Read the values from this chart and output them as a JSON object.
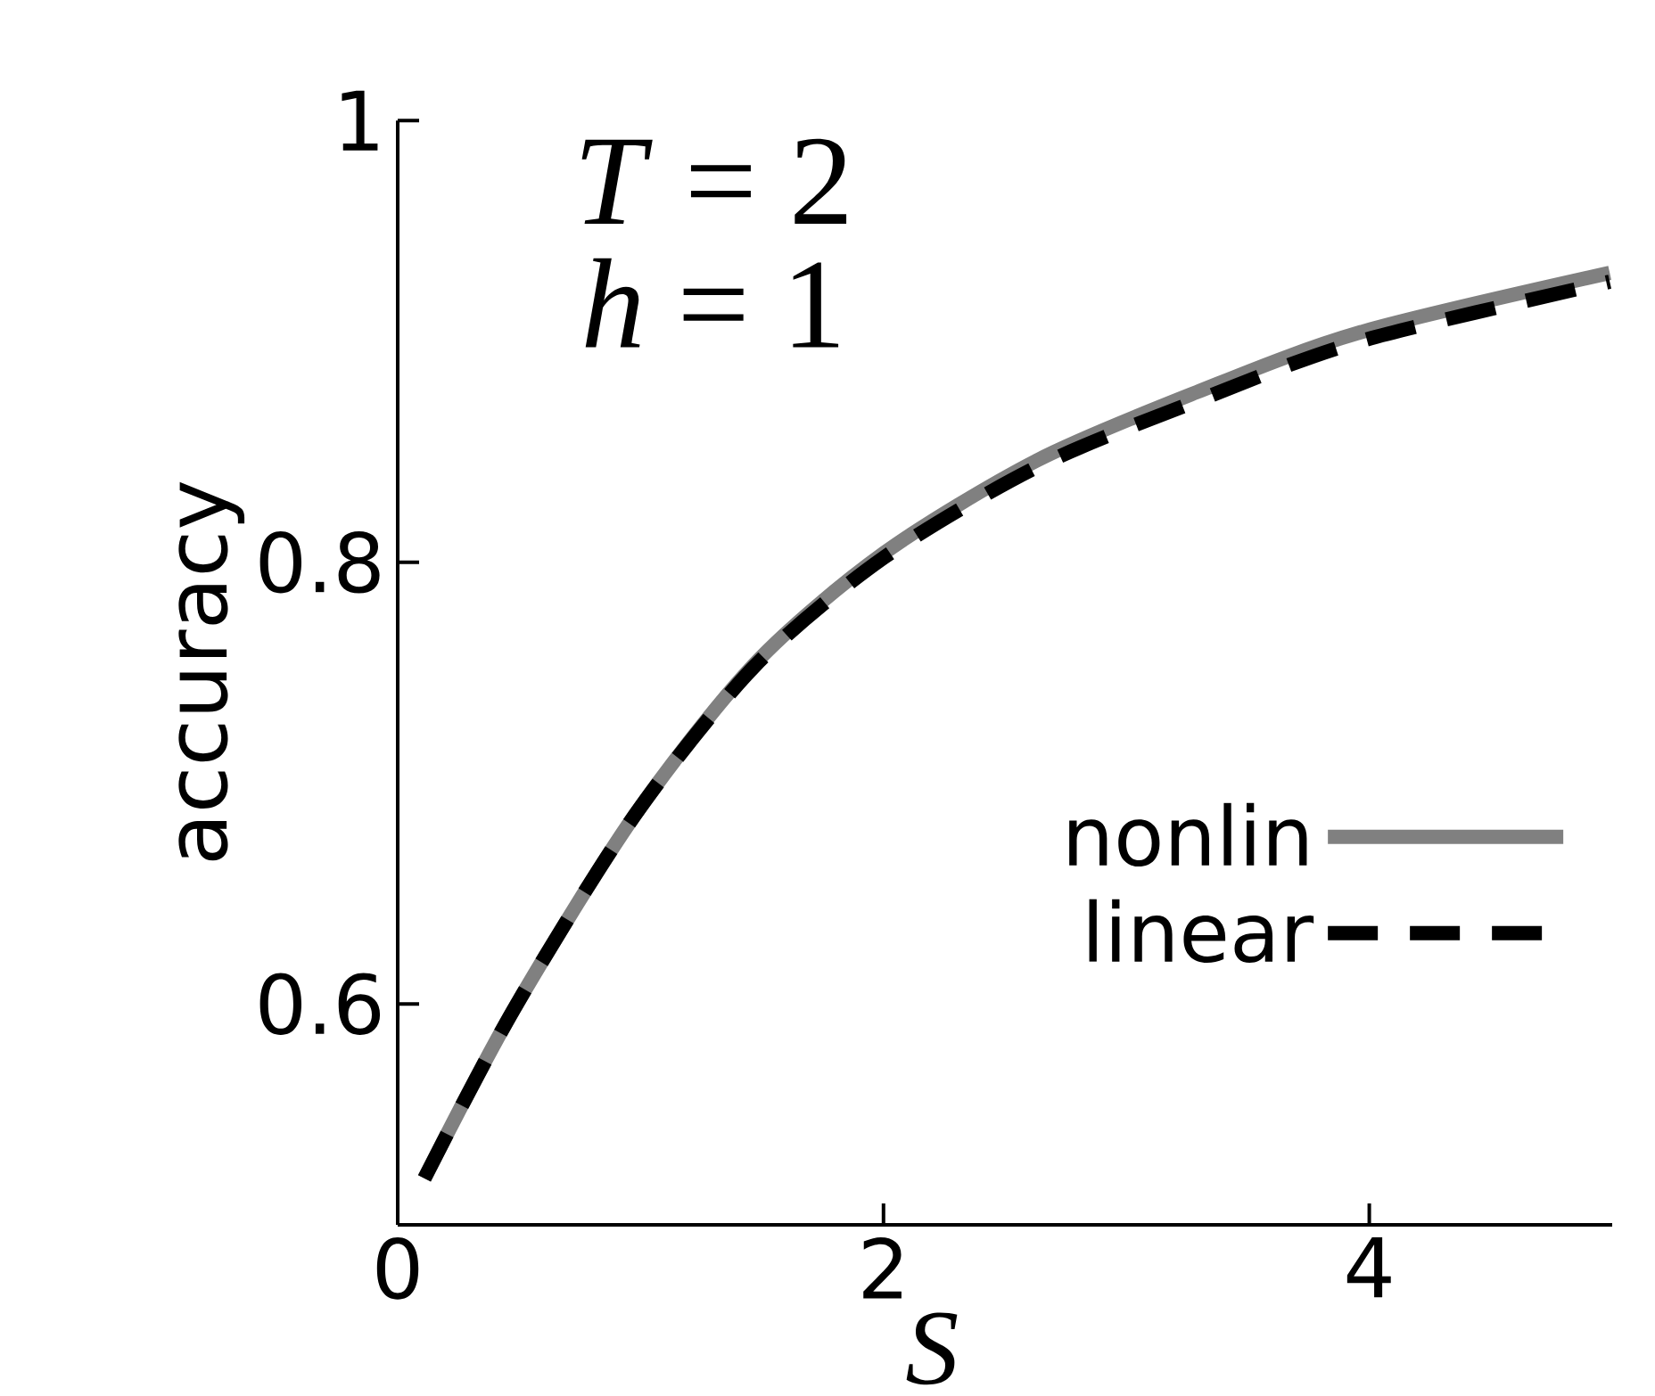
{
  "chart_data": {
    "type": "line",
    "xlabel": "*S*",
    "ylabel": "accuracy",
    "annotations": [
      "*T* = 2",
      "*h* = 1"
    ],
    "xlim": [
      0,
      5
    ],
    "ylim": [
      0.5,
      1
    ],
    "xticks": [
      0,
      2,
      4
    ],
    "yticks": [
      0.6,
      0.8,
      1
    ],
    "legend": "bottom right",
    "series": [
      {
        "name": "nonlin",
        "color": "#808080",
        "line_style": "solid",
        "x": [
          0.11,
          0.475,
          0.973,
          1.47,
          2.0,
          2.63,
          3.29,
          3.96,
          4.99
        ],
        "values": [
          0.521,
          0.597,
          0.685,
          0.754,
          0.804,
          0.846,
          0.877,
          0.904,
          0.931
        ]
      },
      {
        "name": "linear",
        "color": "#000000",
        "line_style": "dashed",
        "x": [
          0.11,
          0.475,
          0.973,
          1.47,
          2.0,
          2.63,
          3.29,
          3.96,
          4.99
        ],
        "values": [
          0.521,
          0.597,
          0.685,
          0.753,
          0.802,
          0.843,
          0.873,
          0.9,
          0.927
        ]
      }
    ]
  }
}
